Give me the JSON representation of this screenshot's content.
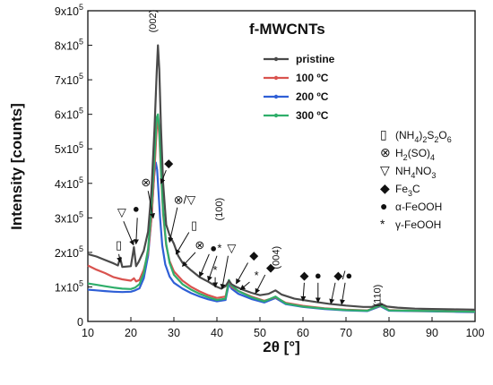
{
  "colors": {
    "pristine": "#4a4a4a",
    "t100": "#d9534f",
    "t200": "#2f5fd6",
    "t300": "#2fae6a",
    "axis": "#111111"
  },
  "chart_data": {
    "type": "line",
    "title": "f-MWCNTs",
    "xlabel": "2θ [°]",
    "ylabel": "Intensity [counts]",
    "xlim": [
      10,
      100
    ],
    "ylim": [
      0,
      900000
    ],
    "x_ticks": [
      "10",
      "20",
      "30",
      "40",
      "50",
      "60",
      "70",
      "80",
      "90",
      "100"
    ],
    "y_ticks": [
      {
        "value": 0,
        "label": "0"
      },
      {
        "value": 100000,
        "base": "1x10",
        "exp": "5"
      },
      {
        "value": 200000,
        "base": "2x10",
        "exp": "5"
      },
      {
        "value": 300000,
        "base": "3x10",
        "exp": "5"
      },
      {
        "value": 400000,
        "base": "4x10",
        "exp": "5"
      },
      {
        "value": 500000,
        "base": "5x10",
        "exp": "5"
      },
      {
        "value": 600000,
        "base": "6x10",
        "exp": "5"
      },
      {
        "value": 700000,
        "base": "7x10",
        "exp": "5"
      },
      {
        "value": 800000,
        "base": "8x10",
        "exp": "5"
      },
      {
        "value": 900000,
        "base": "9x10",
        "exp": "5"
      }
    ],
    "legend_position": "top-right",
    "series": [
      {
        "name": "pristine",
        "color_key": "pristine",
        "x": [
          10,
          12,
          14,
          16,
          17,
          17.5,
          18,
          20,
          20.7,
          21.2,
          21.8,
          23,
          24,
          24.8,
          25.5,
          26.0,
          26.3,
          26.6,
          27.0,
          27.5,
          28.2,
          29,
          30,
          31,
          32,
          34,
          36,
          38,
          40,
          41,
          42,
          42.8,
          43.4,
          44.5,
          46,
          48,
          50,
          52,
          53.6,
          55,
          58,
          62,
          66,
          70,
          74,
          76,
          78,
          79.5,
          82,
          86,
          90,
          95,
          100
        ],
        "y": [
          195000,
          188000,
          178000,
          168000,
          162000,
          185000,
          158000,
          160000,
          215000,
          160000,
          172000,
          205000,
          260000,
          380000,
          560000,
          720000,
          800000,
          730000,
          560000,
          400000,
          280000,
          250000,
          225000,
          190000,
          170000,
          148000,
          128000,
          115000,
          100000,
          95000,
          102000,
          118000,
          108000,
          100000,
          92000,
          83000,
          76000,
          80000,
          90000,
          78000,
          66000,
          58000,
          51000,
          46000,
          42000,
          42000,
          52000,
          43000,
          40000,
          37000,
          36000,
          35000,
          34000
        ]
      },
      {
        "name": "100 ºC",
        "color_key": "t100",
        "x": [
          10,
          12,
          14,
          16,
          18,
          20,
          20.7,
          21.2,
          22,
          23,
          24,
          24.8,
          25.5,
          26.0,
          26.3,
          26.6,
          27.0,
          27.5,
          28.2,
          29,
          30,
          32,
          34,
          36,
          38,
          40,
          42,
          42.8,
          43.4,
          45,
          48,
          51,
          53.6,
          56,
          60,
          65,
          70,
          75,
          78,
          80,
          85,
          90,
          95,
          100
        ],
        "y": [
          162000,
          150000,
          140000,
          128000,
          122000,
          118000,
          125000,
          116000,
          120000,
          150000,
          200000,
          300000,
          440000,
          560000,
          580000,
          540000,
          430000,
          310000,
          220000,
          175000,
          145000,
          118000,
          100000,
          87000,
          76000,
          68000,
          72000,
          118000,
          100000,
          88000,
          72000,
          60000,
          70000,
          54000,
          45000,
          38000,
          34000,
          32000,
          46000,
          33000,
          31000,
          30000,
          29000,
          28000
        ]
      },
      {
        "name": "200 ºC",
        "color_key": "t200",
        "x": [
          10,
          12,
          14,
          16,
          18,
          20,
          21,
          22,
          23,
          24,
          24.8,
          25.4,
          25.8,
          26.1,
          26.4,
          26.8,
          27.3,
          28,
          29,
          30,
          32,
          34,
          36,
          38,
          40,
          42,
          42.8,
          43.4,
          45,
          48,
          51,
          53.6,
          56,
          60,
          65,
          70,
          75,
          78,
          80,
          85,
          90,
          95,
          100
        ],
        "y": [
          92000,
          90000,
          88000,
          86000,
          85000,
          86000,
          90000,
          96000,
          125000,
          190000,
          300000,
          420000,
          460000,
          440000,
          380000,
          300000,
          220000,
          165000,
          130000,
          112000,
          95000,
          82000,
          72000,
          64000,
          58000,
          62000,
          110000,
          95000,
          80000,
          65000,
          55000,
          68000,
          50000,
          42000,
          36000,
          32000,
          30000,
          44000,
          31000,
          30000,
          29000,
          28000,
          27000
        ]
      },
      {
        "name": "300 ºC",
        "color_key": "t300",
        "x": [
          10,
          12,
          14,
          16,
          18,
          20,
          21,
          22,
          23,
          24,
          24.8,
          25.5,
          26.0,
          26.3,
          26.6,
          27.0,
          27.5,
          28.2,
          29,
          30,
          32,
          34,
          36,
          38,
          40,
          42,
          42.8,
          43.4,
          45,
          48,
          51,
          53.6,
          56,
          60,
          65,
          70,
          75,
          78,
          80,
          85,
          90,
          95,
          100
        ],
        "y": [
          110000,
          106000,
          102000,
          98000,
          95000,
          94000,
          98000,
          108000,
          140000,
          210000,
          330000,
          480000,
          590000,
          600000,
          560000,
          440000,
          320000,
          225000,
          170000,
          135000,
          108000,
          92000,
          80000,
          70000,
          62000,
          66000,
          120000,
          104000,
          88000,
          70000,
          58000,
          72000,
          52000,
          43000,
          37000,
          33000,
          31000,
          47000,
          32000,
          31000,
          30000,
          29000,
          28000
        ]
      }
    ],
    "peak_labels": [
      {
        "text": "(002)",
        "x": 25.8,
        "y": 870000
      },
      {
        "text": "(100)",
        "x": 41.2,
        "y": 325000
      },
      {
        "text": "(004)",
        "x": 54.5,
        "y": 185000
      },
      {
        "text": "(110)",
        "x": 78.0,
        "y": 75000
      }
    ],
    "markers": [
      {
        "symbol": "▯",
        "x": 17.2,
        "y": 220000,
        "ax": 17.2,
        "ay": 195000,
        "bx": 17.5,
        "by": 172000
      },
      {
        "symbol": "▽",
        "x": 17.9,
        "y": 315000,
        "ax": 18.3,
        "ay": 290000,
        "bx": 20.6,
        "by": 222000
      },
      {
        "symbol": "●",
        "x": 21.2,
        "y": 325000,
        "ax": 21.5,
        "ay": 300000,
        "bx": 21.2,
        "by": 225000
      },
      {
        "symbol": "⊗",
        "x": 23.5,
        "y": 402000,
        "ax": 24.0,
        "ay": 378000,
        "bx": 25.2,
        "by": 300000
      },
      {
        "symbol": "◆",
        "x": 28.8,
        "y": 458000,
        "ax": 28.2,
        "ay": 438000,
        "bx": 27.0,
        "by": 400000
      },
      {
        "symbol": "⊗/▽",
        "x": 32.5,
        "y": 352000,
        "ax": 30.8,
        "ay": 330000,
        "bx": 29.0,
        "by": 230000
      },
      {
        "symbol": "▯",
        "x": 34.7,
        "y": 278000,
        "ax": 33.5,
        "ay": 258000,
        "bx": 30.5,
        "by": 195000
      },
      {
        "symbol": "⊗",
        "x": 36.0,
        "y": 220000,
        "ax": 35.0,
        "ay": 200000,
        "bx": 32.0,
        "by": 160000
      },
      {
        "symbol": "●",
        "x": 39.2,
        "y": 212000,
        "ax": 38.2,
        "ay": 195000,
        "bx": 36.0,
        "by": 130000
      },
      {
        "symbol": "*",
        "x": 40.6,
        "y": 212000,
        "ax": 40.0,
        "ay": 190000,
        "bx": 38.0,
        "by": 118000
      },
      {
        "symbol": "▽",
        "x": 43.4,
        "y": 212000,
        "ax": 42.6,
        "ay": 190000,
        "bx": 41.2,
        "by": 95000
      },
      {
        "symbol": "*",
        "x": 39.6,
        "y": 148000,
        "ax": 39.6,
        "ay": 128000,
        "bx": 39.6,
        "by": 100000
      },
      {
        "symbol": "◆",
        "x": 48.6,
        "y": 190000,
        "ax": 47.2,
        "ay": 170000,
        "bx": 44.5,
        "by": 110000
      },
      {
        "symbol": "*",
        "x": 49.2,
        "y": 132000,
        "ax": 47.6,
        "ay": 114000,
        "bx": 45.5,
        "by": 92000
      },
      {
        "symbol": "◆",
        "x": 52.5,
        "y": 155000,
        "ax": 51.2,
        "ay": 135000,
        "bx": 49.0,
        "by": 82000
      },
      {
        "symbol": "◆",
        "x": 60.3,
        "y": 132000,
        "ax": 60.3,
        "ay": 112000,
        "bx": 60.0,
        "by": 60000
      },
      {
        "symbol": "●",
        "x": 63.5,
        "y": 132000,
        "ax": 63.5,
        "ay": 112000,
        "bx": 63.5,
        "by": 56000
      },
      {
        "symbol": "◆",
        "x": 68.2,
        "y": 132000,
        "ax": 67.5,
        "ay": 112000,
        "bx": 66.5,
        "by": 52000
      },
      {
        "symbol": "/●",
        "x": 70.3,
        "y": 132000,
        "ax": 69.8,
        "ay": 112000,
        "bx": 69.0,
        "by": 50000
      }
    ],
    "key": [
      {
        "symbol": "▯",
        "text": "(NH",
        "sub1": "4",
        "mid": ")",
        "sub2": "2",
        "rest": "S",
        "sub3": "2",
        "tail": "O",
        "sub4": "6"
      },
      {
        "symbol": "⊗",
        "text": "H",
        "sub1": "2",
        "mid": "(SO)",
        "sub2": "4",
        "rest": "",
        "sub3": "",
        "tail": "",
        "sub4": ""
      },
      {
        "symbol": "▽",
        "text": "NH",
        "sub1": "4",
        "mid": "NO",
        "sub2": "3",
        "rest": "",
        "sub3": "",
        "tail": "",
        "sub4": ""
      },
      {
        "symbol": "◆",
        "text": "Fe",
        "sub1": "3",
        "mid": "C",
        "sub2": "",
        "rest": "",
        "sub3": "",
        "tail": "",
        "sub4": ""
      },
      {
        "symbol": "●",
        "text": "α-FeOOH",
        "sub1": "",
        "mid": "",
        "sub2": "",
        "rest": "",
        "sub3": "",
        "tail": "",
        "sub4": ""
      },
      {
        "symbol": "*",
        "text": "γ-FeOOH",
        "sub1": "",
        "mid": "",
        "sub2": "",
        "rest": "",
        "sub3": "",
        "tail": "",
        "sub4": ""
      }
    ]
  }
}
